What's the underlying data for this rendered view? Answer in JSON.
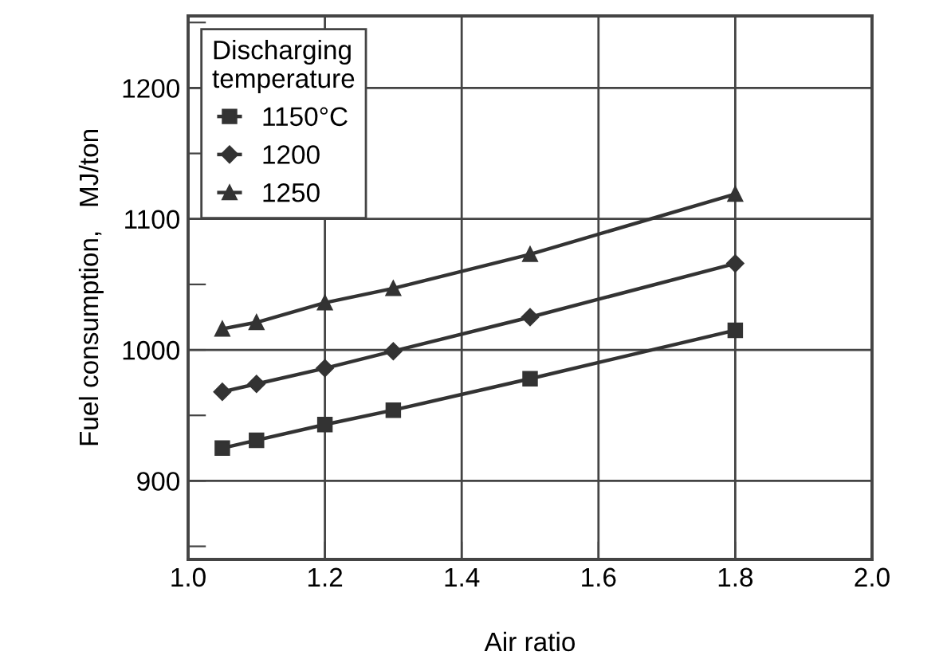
{
  "chart_data": {
    "type": "line",
    "xlabel": "Air ratio",
    "ylabel": "Fuel consumption,   MJ/ton",
    "legend_title": "Discharging\ntemperature",
    "x": [
      1.05,
      1.1,
      1.2,
      1.3,
      1.5,
      1.8
    ],
    "series": [
      {
        "name": "1150°C",
        "color": "#333333",
        "marker": "square",
        "values": [
          925,
          931,
          943,
          954,
          978,
          1015
        ]
      },
      {
        "name": "1200",
        "color": "#333333",
        "marker": "diamond",
        "values": [
          968,
          974,
          986,
          999,
          1025,
          1066
        ]
      },
      {
        "name": "1250",
        "color": "#333333",
        "marker": "triangle",
        "values": [
          1016,
          1021,
          1036,
          1047,
          1073,
          1119
        ]
      }
    ],
    "xlim": [
      1.0,
      2.0
    ],
    "xticks": [
      {
        "value": 1.0,
        "label": "1.0"
      },
      1.2,
      1.4,
      1.6,
      1.8,
      {
        "value": 2.0,
        "label": "2.0"
      }
    ],
    "ylim": [
      840,
      1255
    ],
    "yticks": [
      {
        "value": 850,
        "label": null
      },
      900,
      {
        "value": 950,
        "label": null
      },
      1000,
      {
        "value": 1050,
        "label": null
      },
      1100,
      {
        "value": 1150,
        "label": null
      },
      1200,
      {
        "value": 1250,
        "label": null
      }
    ],
    "grid": true,
    "legend": "top left",
    "line_style": "solid"
  }
}
